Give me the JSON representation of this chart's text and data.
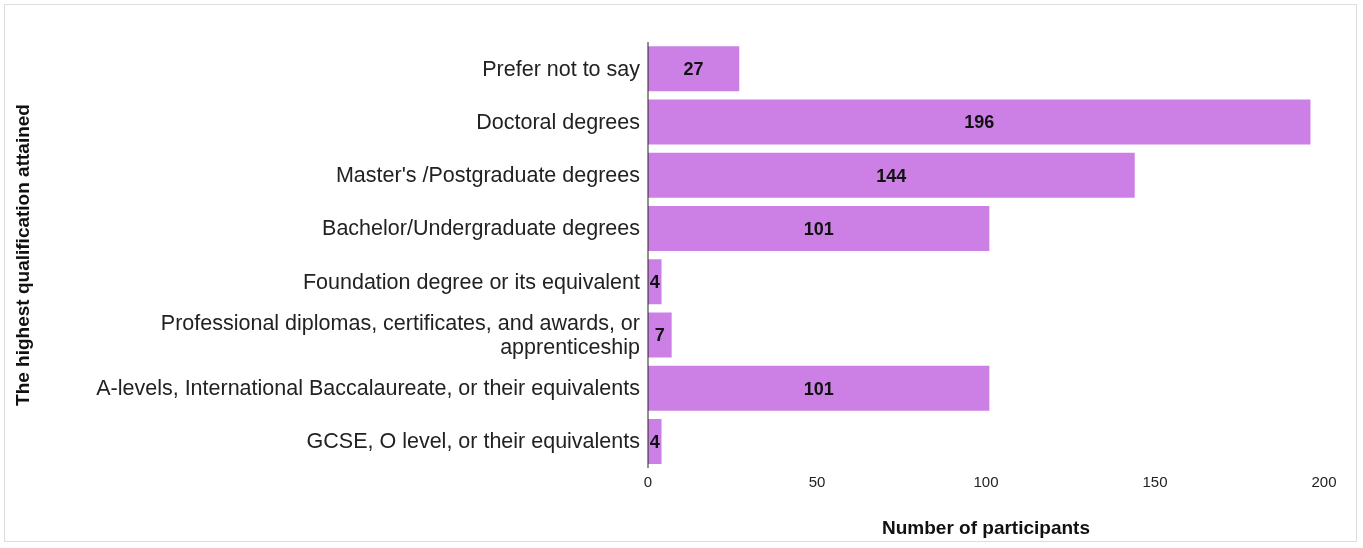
{
  "chart_data": {
    "type": "bar",
    "orientation": "horizontal",
    "xlabel": "Number of participants",
    "ylabel": "The highest qualification attained",
    "categories": [
      "Prefer not to say",
      "Doctoral degrees",
      "Master's /Postgraduate degrees",
      "Bachelor/Undergraduate degrees",
      "Foundation degree or its equivalent",
      "Professional diplomas, certificates, and awards, or apprenticeship",
      "A-levels, International Baccalaureate, or their equivalents",
      "GCSE, O level, or their equivalents"
    ],
    "values": [
      27,
      196,
      144,
      101,
      4,
      7,
      101,
      4
    ],
    "color": "#cc80e6",
    "xlim": [
      0,
      200
    ],
    "xticks": [
      0,
      50,
      100,
      150,
      200
    ],
    "data_labels": true
  }
}
